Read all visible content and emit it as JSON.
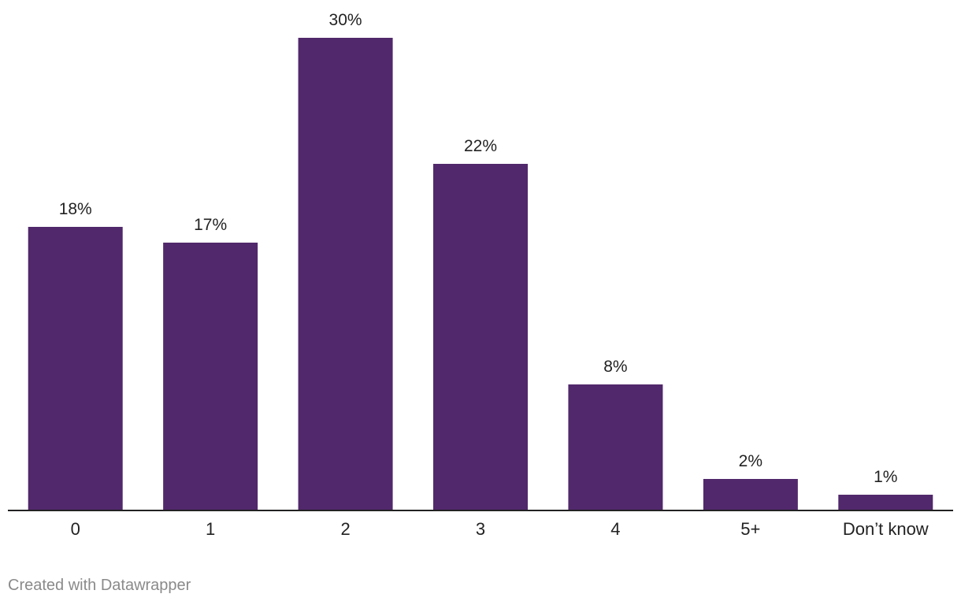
{
  "chart_data": {
    "type": "bar",
    "categories": [
      "0",
      "1",
      "2",
      "3",
      "4",
      "5+",
      "Don’t know"
    ],
    "values": [
      18,
      17,
      30,
      22,
      8,
      2,
      1
    ],
    "value_labels": [
      "18%",
      "17%",
      "30%",
      "22%",
      "8%",
      "2%",
      "1%"
    ],
    "unit": "%",
    "ylim": [
      0,
      30
    ],
    "grid": false,
    "legend": "none",
    "bar_color": "#51286b",
    "axis_color": "#222222"
  },
  "footer": {
    "credit": "Created with Datawrapper"
  }
}
